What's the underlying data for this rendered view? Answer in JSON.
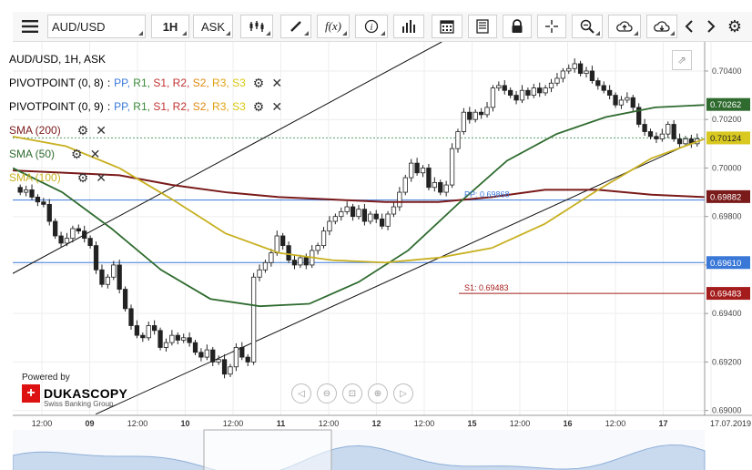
{
  "toolbar": {
    "menu_icon": "hamburger-icon",
    "symbol": "AUD/USD",
    "timeframe": "1H",
    "side": "ASK",
    "icons": [
      "chart-type-icon",
      "draw-icon",
      "function-icon",
      "info-icon",
      "indicators-icon",
      "calendar-icon",
      "news-icon",
      "lock-icon",
      "crosshair-icon",
      "zoom-icon",
      "cloud-upload-icon",
      "cloud-download-icon",
      "back-icon",
      "forward-icon",
      "gear-icon"
    ],
    "fx_label": "f(x)"
  },
  "legend": {
    "title": "AUD/USD, 1H, ASK",
    "pivot1": {
      "name": "PIVOTPOINT (0, 8)",
      "sep": ":"
    },
    "pivot2": {
      "name": "PIVOTPOINT (0, 9)",
      "sep": ":"
    },
    "pivot_items": [
      {
        "label": "PP",
        "color": "#3a78d8"
      },
      {
        "label": "R1",
        "color": "#3a8a3a"
      },
      {
        "label": "S1",
        "color": "#c23030"
      },
      {
        "label": "R2",
        "color": "#c23030"
      },
      {
        "label": "S2",
        "color": "#e08a10"
      },
      {
        "label": "R3",
        "color": "#e0a010"
      },
      {
        "label": "S3",
        "color": "#d8c810"
      }
    ],
    "sma200": "SMA (200)",
    "sma50": "SMA (50)",
    "sma100": "SMA (100)",
    "sma200_color": "#7a1a1a",
    "sma50_color": "#2f6b2f",
    "sma100_color": "#c8b020"
  },
  "branding": {
    "powered_by": "Powered by",
    "name": "DUKASCOPY",
    "tagline": "Swiss Banking Group"
  },
  "chart_data": {
    "type": "candlestick",
    "y_ticks": [
      "0.70400",
      "0.70200",
      "0.70000",
      "0.69800",
      "0.69600",
      "0.69400",
      "0.69200",
      "0.69000"
    ],
    "ylim": [
      0.6898,
      0.7052
    ],
    "x_ticks": [
      "12:00",
      "09",
      "12:00",
      "10",
      "12:00",
      "11",
      "12:00",
      "12",
      "12:00",
      "15",
      "12:00",
      "16",
      "12:00",
      "17",
      "17.07.2019"
    ],
    "price_labels": [
      {
        "text": "0.70262",
        "value": 0.70262,
        "bg": "#2f6b2f",
        "fg": "#fff"
      },
      {
        "text": "0.70124",
        "value": 0.70124,
        "bg": "#d8c820",
        "fg": "#222"
      },
      {
        "text": "0.69882",
        "value": 0.69882,
        "bg": "#7a1a1a",
        "fg": "#fff"
      },
      {
        "text": "0.69610",
        "value": 0.6961,
        "bg": "#3a78d8",
        "fg": "#fff"
      },
      {
        "text": "0.69483",
        "value": 0.69483,
        "bg": "#a51c1c",
        "fg": "#fff"
      }
    ],
    "pp_label": "PP: 0.69868",
    "pp_value": 0.69868,
    "s1_label": "S1: 0.69483",
    "s1_value": 0.69483,
    "hline_blue": 0.6961,
    "current_price": 0.70124,
    "closes": [
      0.699,
      0.6991,
      0.6988,
      0.6986,
      0.6985,
      0.6978,
      0.6972,
      0.6969,
      0.6971,
      0.6975,
      0.6974,
      0.6971,
      0.6968,
      0.6958,
      0.6952,
      0.6955,
      0.696,
      0.695,
      0.6942,
      0.6935,
      0.6931,
      0.693,
      0.6935,
      0.6933,
      0.6926,
      0.6928,
      0.6931,
      0.6929,
      0.693,
      0.6928,
      0.6924,
      0.6922,
      0.6925,
      0.692,
      0.6921,
      0.6915,
      0.6918,
      0.6926,
      0.6922,
      0.692,
      0.6955,
      0.6958,
      0.6961,
      0.6965,
      0.6972,
      0.6968,
      0.6962,
      0.696,
      0.6963,
      0.696,
      0.6966,
      0.6968,
      0.6974,
      0.6978,
      0.698,
      0.6982,
      0.6984,
      0.698,
      0.6983,
      0.6978,
      0.6981,
      0.6979,
      0.6976,
      0.6981,
      0.6984,
      0.699,
      0.6996,
      0.7002,
      0.6998,
      0.7,
      0.6992,
      0.6994,
      0.699,
      0.6993,
      0.7008,
      0.7015,
      0.7023,
      0.702,
      0.7023,
      0.7022,
      0.7025,
      0.7033,
      0.7034,
      0.7032,
      0.703,
      0.7028,
      0.7032,
      0.703,
      0.7033,
      0.7031,
      0.7033,
      0.7035,
      0.7037,
      0.704,
      0.7041,
      0.7043,
      0.7039,
      0.704,
      0.7036,
      0.7034,
      0.7032,
      0.703,
      0.7026,
      0.7028,
      0.7029,
      0.7025,
      0.7018,
      0.7015,
      0.7013,
      0.7012,
      0.7014,
      0.7018,
      0.7012,
      0.701,
      0.7012,
      0.701,
      0.7012
    ],
    "sma200": [
      0.6999,
      0.6998,
      0.6997,
      0.6993,
      0.699,
      0.6988,
      0.6987,
      0.6986,
      0.6986,
      0.6988,
      0.6991,
      0.6991,
      0.6989,
      0.6988
    ],
    "sma50": [
      0.7,
      0.699,
      0.6975,
      0.6958,
      0.6946,
      0.6943,
      0.6944,
      0.6953,
      0.6966,
      0.6985,
      0.7003,
      0.7014,
      0.7021,
      0.7025,
      0.7026
    ],
    "sma100": [
      0.7013,
      0.7009,
      0.7,
      0.6987,
      0.6973,
      0.6965,
      0.6962,
      0.6961,
      0.6963,
      0.6967,
      0.6977,
      0.6991,
      0.7004,
      0.7012
    ],
    "channel_upper": [
      [
        0.69565,
        0
      ],
      [
        0.7052,
        0.62
      ]
    ],
    "channel_lower": [
      [
        0.68985,
        0.12
      ],
      [
        0.70115,
        0.99
      ]
    ]
  }
}
